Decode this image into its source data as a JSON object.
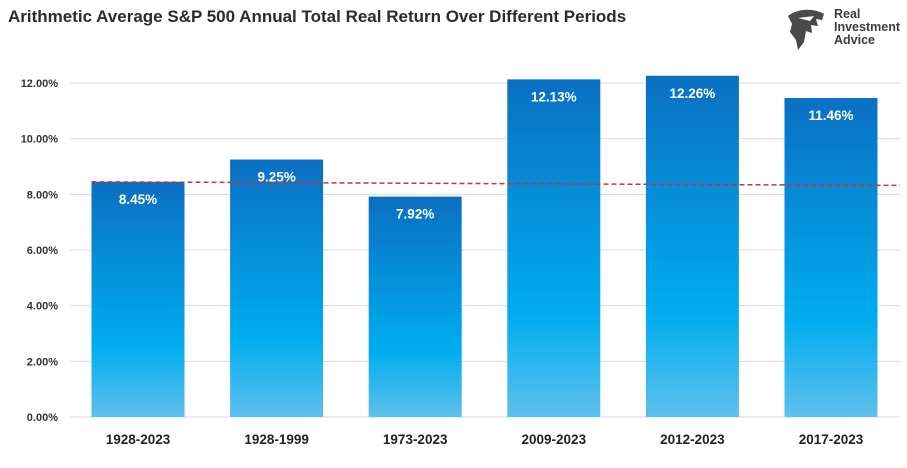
{
  "chart_data": {
    "type": "bar",
    "title": "Arithmetic Average S&P 500 Annual Total Real Return Over Different Periods",
    "categories": [
      "1928-2023",
      "1928-1999",
      "1973-2023",
      "2009-2023",
      "2012-2023",
      "2017-2023"
    ],
    "values": [
      8.45,
      9.25,
      7.92,
      12.13,
      12.26,
      11.46
    ],
    "data_labels": [
      "8.45%",
      "9.25%",
      "7.92%",
      "12.13%",
      "12.26%",
      "11.46%"
    ],
    "ylim": [
      0,
      13
    ],
    "yticks": [
      0,
      2,
      4,
      6,
      8,
      10,
      12
    ],
    "ytick_labels": [
      "0.00%",
      "2.00%",
      "4.00%",
      "6.00%",
      "8.00%",
      "10.00%",
      "12.00%"
    ],
    "xlabel": "",
    "ylabel": "",
    "gridlines": true,
    "trend_line": {
      "style": "dashed",
      "color": "#c0392b",
      "start": 8.45,
      "end": 8.32
    },
    "bar_colors": {
      "top": "#0a6fc2",
      "mid": "#00adef",
      "bottom": "#5fc0ec"
    }
  },
  "brand": {
    "logo_lines": [
      "Real",
      "Investment",
      "Advice"
    ],
    "logo_icon": "eagle-head-icon"
  }
}
